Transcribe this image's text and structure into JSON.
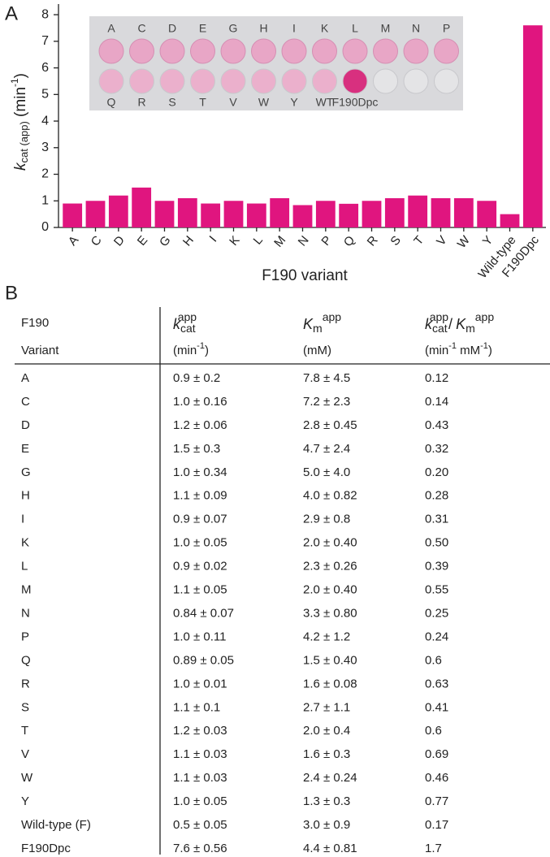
{
  "panel_labels": [
    "A",
    "B"
  ],
  "chart_data": {
    "type": "bar",
    "y_label": {
      "symbol": "k",
      "sub": "cat (app)",
      "unit": "(min",
      "unit_sup": "-1",
      "unit_end": ")"
    },
    "x_label": "F190 variant",
    "categories": [
      "A",
      "C",
      "D",
      "E",
      "G",
      "H",
      "I",
      "K",
      "L",
      "M",
      "N",
      "P",
      "Q",
      "R",
      "S",
      "T",
      "V",
      "W",
      "Y",
      "Wild-type",
      "F190Dpc"
    ],
    "values": [
      0.9,
      1.0,
      1.2,
      1.5,
      1.0,
      1.1,
      0.9,
      1.0,
      0.9,
      1.1,
      0.84,
      1.0,
      0.89,
      1.0,
      1.1,
      1.2,
      1.1,
      1.1,
      1.0,
      0.5,
      7.6
    ],
    "color": "#e0157f",
    "ylim": [
      0,
      8.4
    ],
    "yticks": [
      0,
      1,
      2,
      3,
      4,
      5,
      6,
      7,
      8
    ],
    "inset_labels_top": [
      "A",
      "C",
      "D",
      "E",
      "G",
      "H",
      "I",
      "K",
      "L",
      "M",
      "N",
      "P"
    ],
    "inset_labels_bottom": [
      "Q",
      "R",
      "S",
      "T",
      "V",
      "W",
      "Y",
      "WT",
      "F190Dpc"
    ]
  },
  "table": {
    "header": [
      {
        "line1": "F190",
        "line2": "Variant"
      },
      {
        "symbol": "k",
        "sub": "cat",
        "sup": "app",
        "unit": "(min",
        "unit_sup": "-1",
        "unit_end": ")"
      },
      {
        "symbol": "K",
        "sub": "m",
        "sup": "app",
        "unit": "(mM)"
      },
      {
        "symbol": "k",
        "sub": "cat",
        "sup": "app",
        "sep": "/",
        "symbol2": "K",
        "sub2": "m",
        "sup2": "app",
        "unit": "(min",
        "unit_sup": "-1",
        "unit_mid": " mM",
        "unit_sup2": "-1",
        "unit_end": ")"
      }
    ],
    "rows": [
      [
        "A",
        "0.9 ± 0.2",
        "7.8 ± 4.5",
        "0.12"
      ],
      [
        "C",
        "1.0 ± 0.16",
        "7.2 ± 2.3",
        "0.14"
      ],
      [
        "D",
        "1.2 ± 0.06",
        "2.8 ± 0.45",
        "0.43"
      ],
      [
        "E",
        "1.5 ± 0.3",
        "4.7 ± 2.4",
        "0.32"
      ],
      [
        "G",
        "1.0 ± 0.34",
        "5.0 ± 4.0",
        "0.20"
      ],
      [
        "H",
        "1.1 ± 0.09",
        "4.0 ± 0.82",
        "0.28"
      ],
      [
        "I",
        "0.9 ± 0.07",
        "2.9 ± 0.8",
        "0.31"
      ],
      [
        "K",
        "1.0 ± 0.05",
        "2.0 ± 0.40",
        "0.50"
      ],
      [
        "L",
        "0.9 ± 0.02",
        "2.3 ± 0.26",
        "0.39"
      ],
      [
        "M",
        "1.1 ± 0.05",
        "2.0 ± 0.40",
        "0.55"
      ],
      [
        "N",
        "0.84 ± 0.07",
        "3.3 ± 0.80",
        "0.25"
      ],
      [
        "P",
        "1.0 ± 0.11",
        "4.2 ± 1.2",
        "0.24"
      ],
      [
        "Q",
        "0.89 ± 0.05",
        "1.5  ± 0.40",
        "0.6"
      ],
      [
        "R",
        "1.0 ± 0.01",
        "1.6 ± 0.08",
        "0.63"
      ],
      [
        "S",
        "1.1 ± 0.1",
        "2.7 ± 1.1",
        "0.41"
      ],
      [
        "T",
        "1.2 ± 0.03",
        "2.0 ± 0.4",
        "0.6"
      ],
      [
        "V",
        "1.1 ± 0.03",
        "1.6 ± 0.3",
        "0.69"
      ],
      [
        "W",
        "1.1 ± 0.03",
        "2.4 ± 0.24",
        "0.46"
      ],
      [
        "Y",
        "1.0 ± 0.05",
        "1.3 ± 0.3",
        "0.77"
      ],
      [
        "Wild-type (F)",
        "0.5 ± 0.05",
        "3.0 ± 0.9",
        "0.17"
      ],
      [
        "F190Dpc",
        "7.6 ± 0.56",
        "4.4 ± 0.81",
        "1.7"
      ]
    ]
  }
}
